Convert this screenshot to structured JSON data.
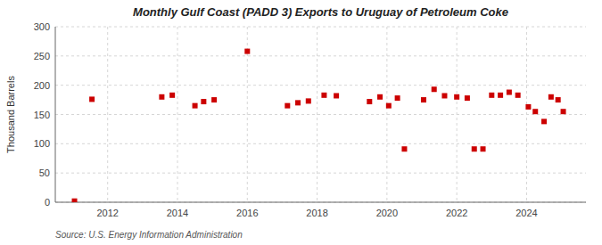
{
  "chart_data": {
    "type": "scatter",
    "title": "Monthly Gulf Coast (PADD 3) Exports to Uruguay of Petroleum Coke",
    "ylabel": "Thousand Barrels",
    "annotations": [
      "Source: U.S. Energy Information Administration"
    ],
    "color": "#cc0000",
    "marker": "square",
    "grid": true,
    "xlim": [
      2010.5,
      2025.7
    ],
    "xticks": [
      2012,
      2014,
      2016,
      2018,
      2020,
      2022,
      2024
    ],
    "ylim": [
      0,
      300
    ],
    "yticks": [
      0,
      50,
      100,
      150,
      200,
      250,
      300
    ],
    "x": [
      2011.05,
      2011.55,
      2013.55,
      2013.85,
      2014.5,
      2014.75,
      2015.05,
      2016.0,
      2017.15,
      2017.45,
      2017.75,
      2018.2,
      2018.55,
      2019.5,
      2019.8,
      2020.05,
      2020.3,
      2020.5,
      2021.05,
      2021.35,
      2021.65,
      2022.0,
      2022.3,
      2022.5,
      2022.75,
      2023.0,
      2023.25,
      2023.5,
      2023.75,
      2024.05,
      2024.25,
      2024.5,
      2024.7,
      2024.9,
      2025.05
    ],
    "values": [
      2,
      176,
      180,
      183,
      165,
      172,
      175,
      258,
      165,
      170,
      173,
      183,
      182,
      172,
      180,
      165,
      178,
      91,
      175,
      193,
      182,
      180,
      178,
      91,
      91,
      183,
      183,
      188,
      183,
      163,
      155,
      138,
      180,
      175,
      155
    ]
  }
}
